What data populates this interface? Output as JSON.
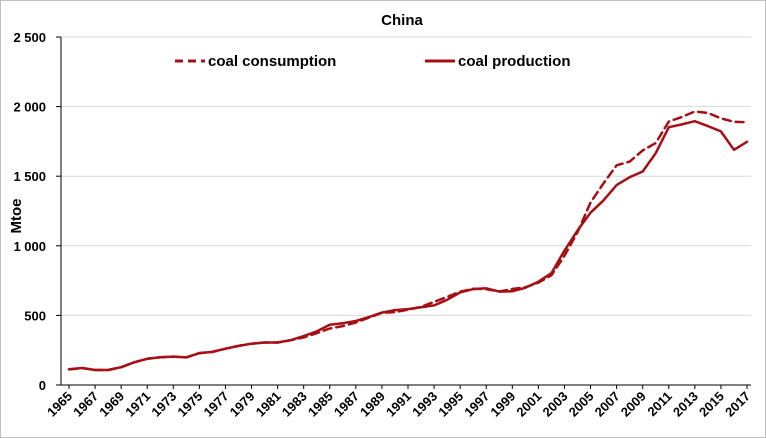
{
  "chart_data": {
    "type": "line",
    "title": "China",
    "xlabel": "",
    "ylabel": "Mtoe",
    "ylim": [
      0,
      2500
    ],
    "yticks": [
      0,
      500,
      1000,
      1500,
      2000,
      2500
    ],
    "ytick_labels": [
      "0",
      "500",
      "1 000",
      "1 500",
      "2 000",
      "2 500"
    ],
    "xtick_labels": [
      "1965",
      "1967",
      "1969",
      "1971",
      "1973",
      "1975",
      "1977",
      "1979",
      "1981",
      "1983",
      "1985",
      "1987",
      "1989",
      "1991",
      "1993",
      "1995",
      "1997",
      "1999",
      "2001",
      "2003",
      "2005",
      "2007",
      "2009",
      "2011",
      "2013",
      "2015",
      "2017"
    ],
    "grid": true,
    "legend_position": "top",
    "colors": {
      "series": "#a50f15",
      "grid": "#d9d9d9"
    },
    "x": [
      1965,
      1966,
      1967,
      1968,
      1969,
      1970,
      1971,
      1972,
      1973,
      1974,
      1975,
      1976,
      1977,
      1978,
      1979,
      1980,
      1981,
      1982,
      1983,
      1984,
      1985,
      1986,
      1987,
      1988,
      1989,
      1990,
      1991,
      1992,
      1993,
      1994,
      1995,
      1996,
      1997,
      1998,
      1999,
      2000,
      2001,
      2002,
      2003,
      2004,
      2005,
      2006,
      2007,
      2008,
      2009,
      2010,
      2011,
      2012,
      2013,
      2014,
      2015,
      2016,
      2017
    ],
    "series": [
      {
        "name": "coal consumption",
        "style": "dashed",
        "values": [
          112,
          122,
          108,
          108,
          128,
          163,
          188,
          199,
          204,
          198,
          229,
          238,
          261,
          281,
          297,
          305,
          305,
          322,
          342,
          372,
          406,
          423,
          449,
          484,
          519,
          524,
          541,
          561,
          597,
          633,
          670,
          691,
          689,
          672,
          690,
          702,
          735,
          788,
          929,
          1097,
          1310,
          1450,
          1578,
          1605,
          1685,
          1738,
          1893,
          1925,
          1965,
          1955,
          1916,
          1890,
          1888
        ]
      },
      {
        "name": "coal production",
        "style": "solid",
        "values": [
          112,
          122,
          108,
          108,
          128,
          163,
          188,
          199,
          204,
          198,
          229,
          238,
          261,
          281,
          297,
          305,
          305,
          322,
          351,
          385,
          433,
          444,
          460,
          488,
          520,
          538,
          545,
          558,
          572,
          612,
          665,
          689,
          695,
          671,
          673,
          698,
          742,
          803,
          966,
          1110,
          1238,
          1327,
          1436,
          1493,
          1534,
          1665,
          1852,
          1872,
          1895,
          1860,
          1822,
          1690,
          1747
        ]
      }
    ]
  }
}
